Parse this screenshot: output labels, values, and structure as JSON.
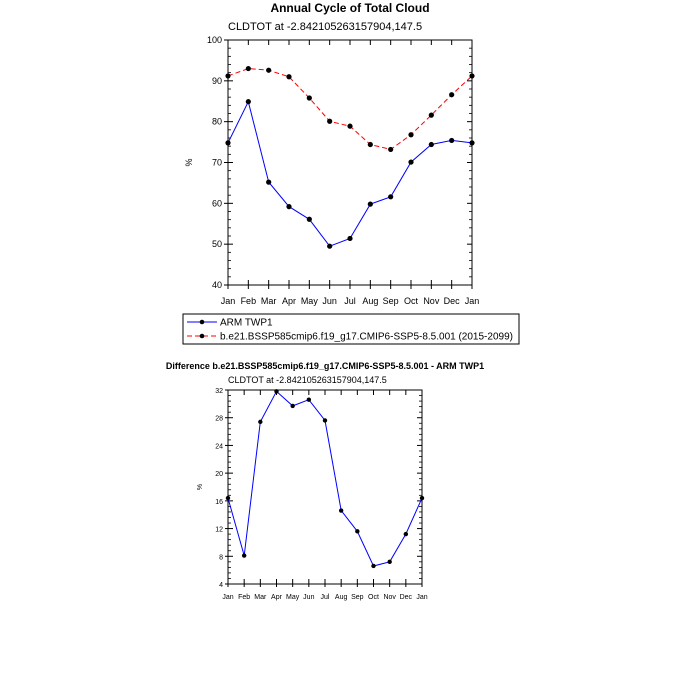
{
  "chart_data": [
    {
      "type": "line",
      "title": "Annual Cycle of Total Cloud",
      "subtitle": "CLDTOT at -2.842105263157904,147.5",
      "ylabel": "%",
      "xlabel": "",
      "categories": [
        "Jan",
        "Feb",
        "Mar",
        "Apr",
        "May",
        "Jun",
        "Jul",
        "Aug",
        "Sep",
        "Oct",
        "Nov",
        "Dec",
        "Jan"
      ],
      "ylim": [
        40,
        100
      ],
      "yticks": [
        40,
        50,
        60,
        70,
        80,
        90,
        100
      ],
      "grid": false,
      "legend_placement": "bottom",
      "series": [
        {
          "name": "ARM TWP1",
          "color": "#0000ff",
          "style": "solid",
          "values": [
            74.8,
            84.9,
            65.2,
            59.2,
            56.1,
            49.5,
            51.4,
            59.8,
            61.6,
            70.1,
            74.4,
            75.4,
            74.8
          ]
        },
        {
          "name": "b.e21.BSSP585cmip6.f19_g17.CMIP6-SSP5-8.5.001 (2015-2099)",
          "color": "#ff0000",
          "style": "dashed",
          "values": [
            91.2,
            93.0,
            92.6,
            91.0,
            85.8,
            80.1,
            78.9,
            74.4,
            73.2,
            76.8,
            81.6,
            86.6,
            91.2
          ]
        }
      ]
    },
    {
      "type": "line",
      "title": "Difference b.e21.BSSP585cmip6.f19_g17.CMIP6-SSP5-8.5.001 - ARM TWP1",
      "subtitle": "CLDTOT at -2.842105263157904,147.5",
      "ylabel": "%",
      "xlabel": "",
      "categories": [
        "Jan",
        "Feb",
        "Mar",
        "Apr",
        "May",
        "Jun",
        "Jul",
        "Aug",
        "Sep",
        "Oct",
        "Nov",
        "Dec",
        "Jan"
      ],
      "ylim": [
        4,
        32
      ],
      "yticks": [
        4,
        8,
        12,
        16,
        20,
        24,
        28,
        32
      ],
      "grid": false,
      "series": [
        {
          "name": "",
          "color": "#0000ff",
          "style": "solid",
          "values": [
            16.4,
            8.1,
            27.4,
            31.8,
            29.7,
            30.6,
            27.6,
            14.6,
            11.6,
            6.6,
            7.2,
            11.2,
            16.4
          ]
        }
      ]
    }
  ]
}
